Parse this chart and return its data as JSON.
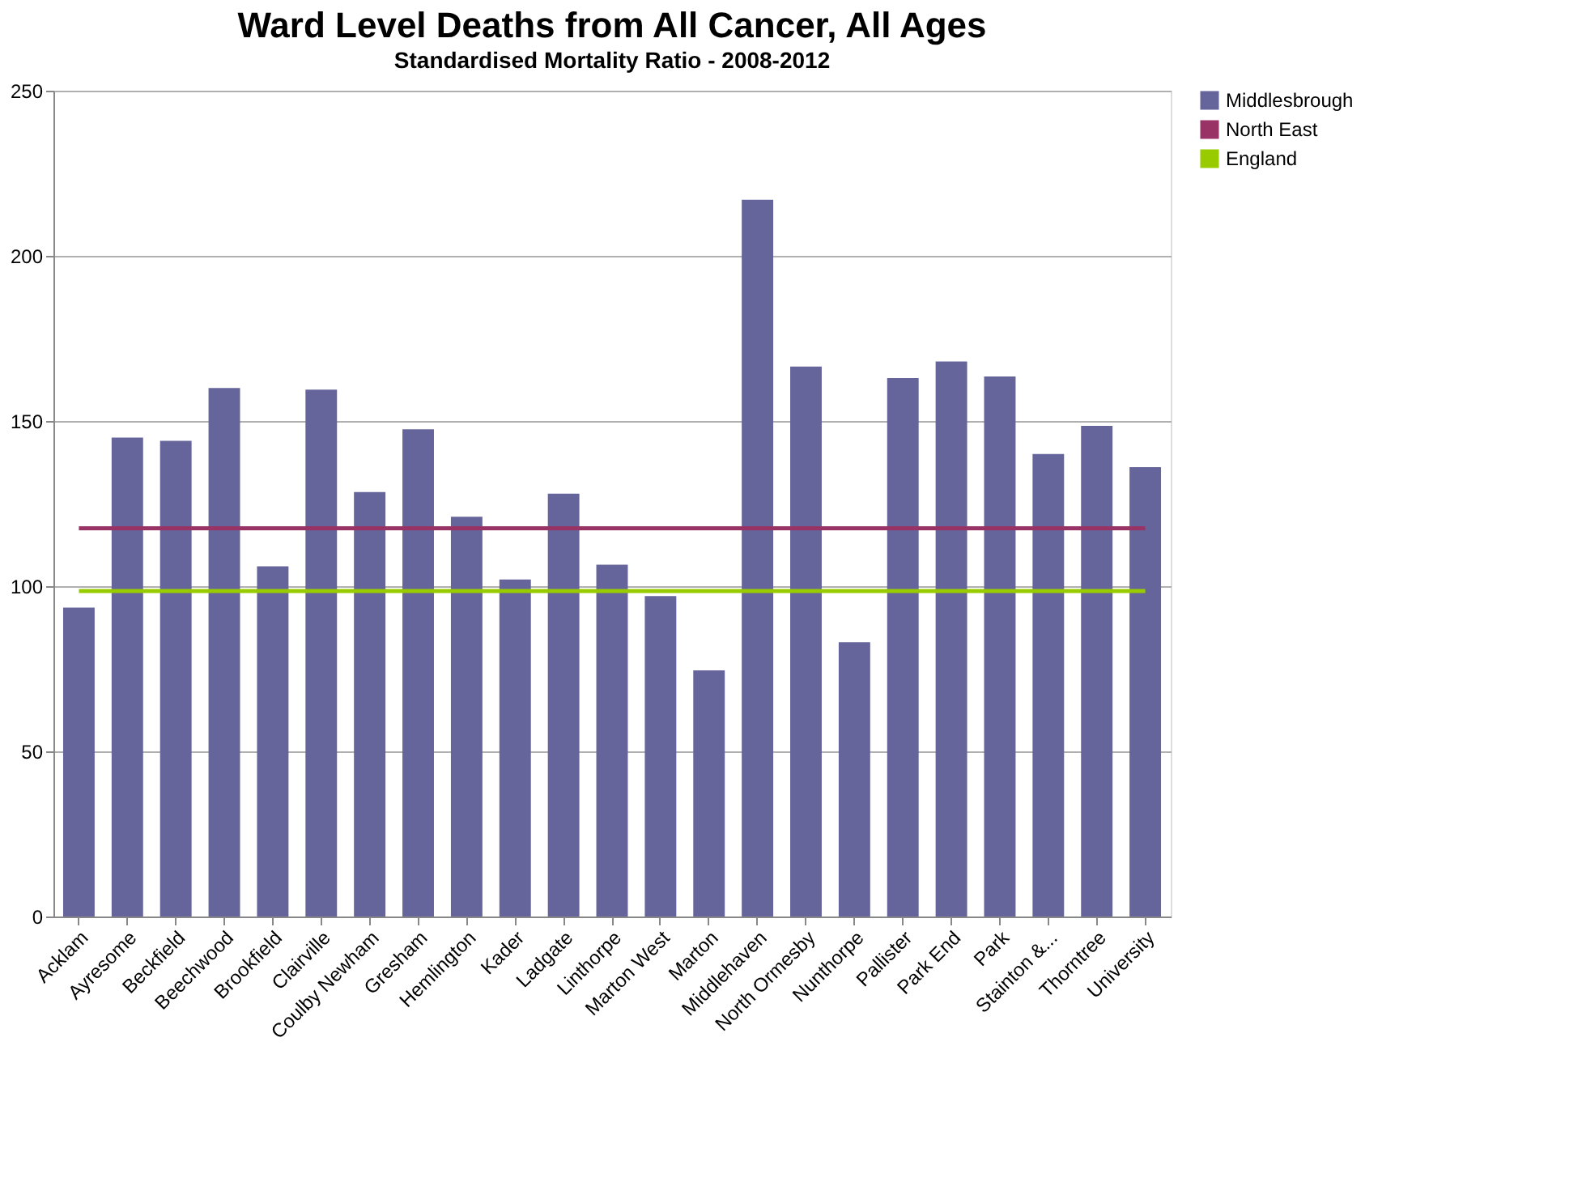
{
  "chart_data": {
    "type": "bar",
    "title": "Ward Level Deaths from All Cancer, All Ages",
    "subtitle": "Standardised Mortality Ratio - 2008-2012",
    "categories": [
      "Acklam",
      "Ayresome",
      "Beckfield",
      "Beechwood",
      "Brookfield",
      "Clairville",
      "Coulby Newham",
      "Gresham",
      "Hemlington",
      "Kader",
      "Ladgate",
      "Linthorpe",
      "Marton West",
      "Marton",
      "Middlehaven",
      "North Ormesby",
      "Nunthorpe",
      "Pallister",
      "Park End",
      "Park",
      "Stainton &...",
      "Thorntree",
      "University"
    ],
    "series": [
      {
        "name": "Middlesbrough",
        "type": "bar",
        "color": "#65659b",
        "values": [
          93.5,
          145,
          144,
          160,
          106,
          159.5,
          128.5,
          147.5,
          121,
          102,
          128,
          106.5,
          97,
          74.5,
          217,
          166.5,
          83,
          163,
          168,
          163.5,
          140,
          148.5,
          136
        ]
      },
      {
        "name": "North East",
        "type": "line",
        "color": "#993366",
        "values": [
          117.5,
          117.5,
          117.5,
          117.5,
          117.5,
          117.5,
          117.5,
          117.5,
          117.5,
          117.5,
          117.5,
          117.5,
          117.5,
          117.5,
          117.5,
          117.5,
          117.5,
          117.5,
          117.5,
          117.5,
          117.5,
          117.5,
          117.5
        ]
      },
      {
        "name": "England",
        "type": "line",
        "color": "#99cc00",
        "values": [
          98.5,
          98.5,
          98.5,
          98.5,
          98.5,
          98.5,
          98.5,
          98.5,
          98.5,
          98.5,
          98.5,
          98.5,
          98.5,
          98.5,
          98.5,
          98.5,
          98.5,
          98.5,
          98.5,
          98.5,
          98.5,
          98.5,
          98.5
        ]
      }
    ],
    "ylim": [
      0,
      250
    ],
    "yticks": [
      0,
      50,
      100,
      150,
      200,
      250
    ],
    "grid": "y",
    "legend": "right"
  }
}
